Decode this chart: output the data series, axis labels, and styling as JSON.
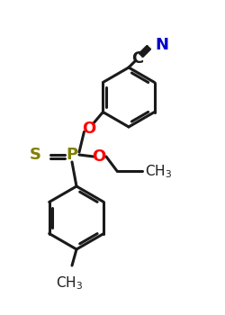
{
  "background": "#ffffff",
  "atom_colors": {
    "C": "#1a1a1a",
    "N": "#0000cc",
    "O": "#ff0000",
    "P": "#808000",
    "S": "#808000"
  },
  "bond_lw": 2.2,
  "font_size_atom": 13,
  "font_size_group": 11
}
